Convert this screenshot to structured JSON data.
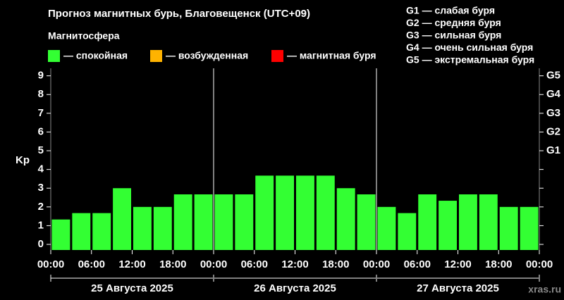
{
  "chart_data": {
    "type": "bar",
    "title": "Прогноз магнитных бурь, Благовещенск (UTC+09)",
    "legend_title": "Магнитосфера",
    "legend": [
      {
        "label": "— спокойная",
        "color": "#33ff33"
      },
      {
        "label": "— возбужденная",
        "color": "#ffb300"
      },
      {
        "label": "— магнитная буря",
        "color": "#ff0000"
      }
    ],
    "g_scale": [
      "G1 — слабая буря",
      "G2 — средняя буря",
      "G3 — сильная буря",
      "G4 — очень сильная буря",
      "G5 — экстремальная буря"
    ],
    "ylabel": "Kp",
    "x_tick_labels": [
      "00:00",
      "06:00",
      "12:00",
      "18:00",
      "00:00",
      "06:00",
      "12:00",
      "18:00",
      "00:00",
      "06:00",
      "12:00",
      "18:00",
      "00:00"
    ],
    "days": [
      "25 Августа 2025",
      "26 Августа 2025",
      "27 Августа 2025"
    ],
    "series": [
      {
        "name": "— спокойная",
        "color": "#33ff33",
        "values": [
          1.33,
          1.67,
          1.67,
          3,
          2,
          2,
          2.67,
          2.67,
          2.67,
          2.67,
          3.67,
          3.67,
          3.67,
          3.67,
          3,
          2.67,
          2,
          1.67,
          2.67,
          2.33,
          2.67,
          2.67,
          2,
          2
        ]
      }
    ],
    "ylim": [
      -0.3,
      9.4
    ],
    "yticks": [
      0,
      1,
      2,
      3,
      4,
      5,
      6,
      7,
      8,
      9
    ],
    "y2lim": [
      -0.3,
      9.4
    ],
    "y2ticks": [
      {
        "value": 5,
        "label": "G1"
      },
      {
        "value": 6,
        "label": "G2"
      },
      {
        "value": 7,
        "label": "G3"
      },
      {
        "value": 8,
        "label": "G4"
      },
      {
        "value": 9,
        "label": "G5"
      }
    ],
    "watermark": "xras.ru"
  }
}
